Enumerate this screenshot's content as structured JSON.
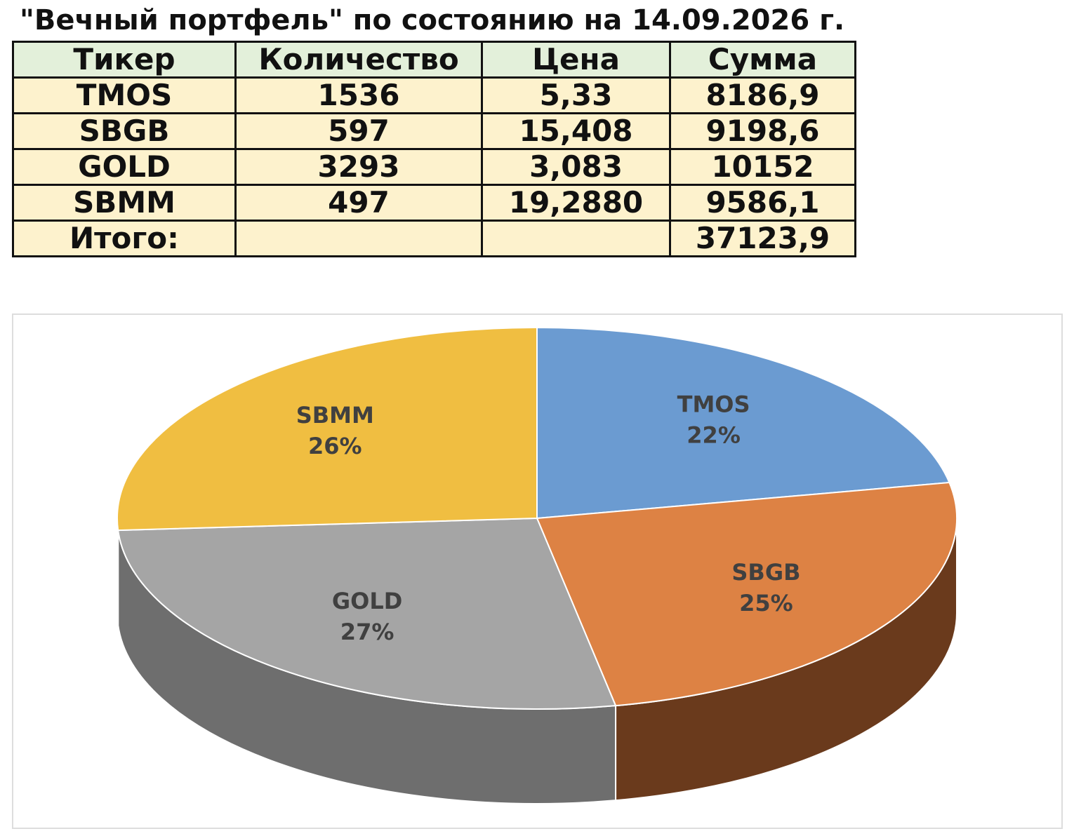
{
  "title": "\"Вечный портфель\" по состоянию на 14.09.2026 г.",
  "table": {
    "header": [
      "Тикер",
      "Количество",
      "Цена",
      "Сумма"
    ],
    "rows": [
      [
        "TMOS",
        "1536",
        "5,33",
        "8186,9"
      ],
      [
        "SBGB",
        "597",
        "15,408",
        "9198,6"
      ],
      [
        "GOLD",
        "3293",
        "3,083",
        "10152"
      ],
      [
        "SBMM",
        "497",
        "19,2880",
        "9586,1"
      ],
      [
        "Итого:",
        null,
        null,
        "37123,9"
      ]
    ]
  },
  "chart_data": {
    "type": "pie",
    "categories": [
      "TMOS",
      "SBGB",
      "GOLD",
      "SBMM"
    ],
    "values": [
      22,
      25,
      27,
      26
    ],
    "value_labels": [
      "22%",
      "25%",
      "27%",
      "26%"
    ],
    "colors": [
      "#6b9bd1",
      "#dd8244",
      "#a5a5a5",
      "#f0be41"
    ],
    "side_colors": [
      "#3f5f86",
      "#6a3a1c",
      "#6e6e6e",
      "#8c6d20"
    ]
  }
}
